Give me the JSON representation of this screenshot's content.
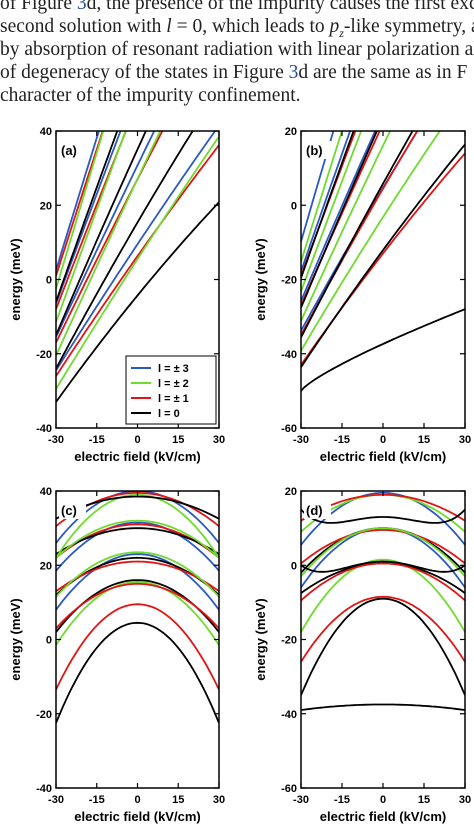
{
  "paper_text": {
    "line1": {
      "a": "of Figure ",
      "ref": "3",
      "b": "d, the presence of the impurity causes the first exc"
    },
    "line2": {
      "a": "second solution with ",
      "i1": "l",
      "b": " = 0, which leads to ",
      "i2": "p",
      "sub": "z",
      "c": "-like symmetry, and"
    },
    "line3": "by absorption of resonant radiation with linear polarization al",
    "line4": {
      "a": "of degeneracy of the states in Figure ",
      "ref": "3",
      "b": "d are the same as in F"
    },
    "line5": "character of the impurity confinement."
  },
  "figure": {
    "colors": {
      "l3": "#2b59c3",
      "l2": "#6fdb2d",
      "l1": "#e01515",
      "l0": "#000000"
    },
    "legend": [
      "l = ± 3",
      "l = ± 2",
      "l = ± 1",
      "l = 0"
    ],
    "panels": [
      {
        "label": "(a)",
        "ylabel": "energy (meV)",
        "xlabel": "electric field (kV/cm)",
        "xticks": [
          "-30",
          "-15",
          "0",
          "15",
          "30"
        ],
        "yticks": [
          "40",
          "20",
          "0",
          "-20",
          "-40"
        ],
        "ylim": [
          -40,
          40
        ],
        "show_legend": true
      },
      {
        "label": "(b)",
        "ylabel": "energy (meV)",
        "xlabel": "electric field (kV/cm)",
        "xticks": [
          "-30",
          "-15",
          "0",
          "15",
          "30"
        ],
        "yticks": [
          "20",
          "0",
          "-20",
          "-40",
          "-60"
        ],
        "ylim": [
          -60,
          20
        ],
        "show_legend": false
      },
      {
        "label": "(c)",
        "ylabel": "energy (meV)",
        "xlabel": "electric field (kV/cm)",
        "xticks": [
          "-30",
          "-15",
          "0",
          "15",
          "30"
        ],
        "yticks": [
          "40",
          "20",
          "0",
          "-20",
          "-40"
        ],
        "ylim": [
          -40,
          40
        ],
        "show_legend": false
      },
      {
        "label": "(d)",
        "ylabel": "energy (meV)",
        "xlabel": "electric field (kV/cm)",
        "xticks": [
          "-30",
          "-15",
          "0",
          "15",
          "30"
        ],
        "yticks": [
          "20",
          "0",
          "-20",
          "-40",
          "-60"
        ],
        "ylim": [
          -60,
          20
        ],
        "show_legend": false
      }
    ]
  },
  "chart_data": [
    {
      "type": "line",
      "panel": "(a)",
      "xlabel": "electric field (kV/cm)",
      "ylabel": "energy (meV)",
      "xlim": [
        -30,
        30
      ],
      "ylim": [
        -40,
        40
      ],
      "series": [
        {
          "name": "l = 0",
          "color": "#000000",
          "x": [
            -30,
            30
          ],
          "y": [
            -33,
            28
          ]
        },
        {
          "name": "l = ± 1",
          "color": "#e01515",
          "x": [
            -30,
            30
          ],
          "y": [
            -27,
            40
          ]
        },
        {
          "name": "l = ± 2",
          "color": "#6fdb2d",
          "x": [
            -30,
            20
          ],
          "y": [
            -31,
            40
          ]
        },
        {
          "name": "l = ± 3",
          "color": "#2b59c3",
          "x": [
            -30,
            5
          ],
          "y": [
            -25,
            40
          ]
        },
        {
          "name": "l = 0",
          "color": "#000000",
          "x": [
            -30,
            16
          ],
          "y": [
            -15,
            40
          ]
        },
        {
          "name": "l = ± 1",
          "color": "#e01515",
          "x": [
            -30,
            8
          ],
          "y": [
            -10,
            40
          ]
        },
        {
          "name": "l = ± 2",
          "color": "#6fdb2d",
          "x": [
            -30,
            3
          ],
          "y": [
            -6,
            40
          ]
        },
        {
          "name": "l = ± 3",
          "color": "#2b59c3",
          "x": [
            -30,
            -10
          ],
          "y": [
            0,
            40
          ]
        }
      ]
    },
    {
      "type": "line",
      "panel": "(b)",
      "xlabel": "electric field (kV/cm)",
      "ylabel": "energy (meV)",
      "xlim": [
        -30,
        30
      ],
      "ylim": [
        -60,
        20
      ],
      "series": [
        {
          "name": "l = 0",
          "color": "#000000",
          "x": [
            -30,
            0,
            30
          ],
          "y": [
            -50,
            -38,
            -28
          ]
        },
        {
          "name": "l = 0",
          "color": "#000000",
          "x": [
            -30,
            30
          ],
          "y": [
            -44,
            20
          ]
        },
        {
          "name": "l = ± 1",
          "color": "#e01515",
          "x": [
            -30,
            30
          ],
          "y": [
            -43,
            20
          ]
        },
        {
          "name": "l = ± 2",
          "color": "#6fdb2d",
          "x": [
            -30,
            16
          ],
          "y": [
            -40,
            20
          ]
        },
        {
          "name": "l = ± 3",
          "color": "#2b59c3",
          "x": [
            -30,
            4
          ],
          "y": [
            -35,
            20
          ]
        }
      ]
    },
    {
      "type": "line",
      "panel": "(c)",
      "xlabel": "electric field (kV/cm)",
      "ylabel": "energy (meV)",
      "xlim": [
        -30,
        30
      ],
      "ylim": [
        -40,
        40
      ],
      "series": [
        {
          "name": "l = 0",
          "color": "#000000",
          "x": [
            -30,
            0,
            30
          ],
          "y": [
            -22,
            5,
            -22
          ]
        },
        {
          "name": "l = ± 1",
          "color": "#e01515",
          "x": [
            -30,
            0,
            30
          ],
          "y": [
            -13,
            9.5,
            -13
          ]
        },
        {
          "name": "l = ± 2",
          "color": "#6fdb2d",
          "x": [
            -30,
            0,
            30
          ],
          "y": [
            -1,
            15.5,
            -1
          ]
        },
        {
          "name": "l = ± 3",
          "color": "#2b59c3",
          "x": [
            -30,
            0,
            30
          ],
          "y": [
            8,
            23,
            8
          ]
        },
        {
          "name": "l = ± 2",
          "color": "#6fdb2d",
          "x": [
            -30,
            0,
            30
          ],
          "y": [
            22,
            39,
            22
          ]
        }
      ]
    },
    {
      "type": "line",
      "panel": "(d)",
      "xlabel": "electric field (kV/cm)",
      "ylabel": "energy (meV)",
      "xlim": [
        -30,
        30
      ],
      "ylim": [
        -60,
        20
      ],
      "series": [
        {
          "name": "l = 0",
          "color": "#000000",
          "x": [
            -30,
            0,
            30
          ],
          "y": [
            -39,
            -37.5,
            -39
          ]
        },
        {
          "name": "l = 0",
          "color": "#000000",
          "x": [
            -30,
            0,
            30
          ],
          "y": [
            -35,
            -9,
            -35
          ]
        },
        {
          "name": "l = ± 1",
          "color": "#e01515",
          "x": [
            -30,
            0,
            30
          ],
          "y": [
            -26,
            -8.5,
            -26
          ]
        },
        {
          "name": "l = ± 2",
          "color": "#6fdb2d",
          "x": [
            -30,
            0,
            30
          ],
          "y": [
            -18,
            1.5,
            -18
          ]
        },
        {
          "name": "l = ± 3",
          "color": "#2b59c3",
          "x": [
            -30,
            0,
            30
          ],
          "y": [
            -6,
            10,
            -6
          ]
        },
        {
          "name": "l = ± 3",
          "color": "#2b59c3",
          "x": [
            -30,
            0,
            30
          ],
          "y": [
            5,
            19,
            5
          ]
        }
      ]
    }
  ]
}
